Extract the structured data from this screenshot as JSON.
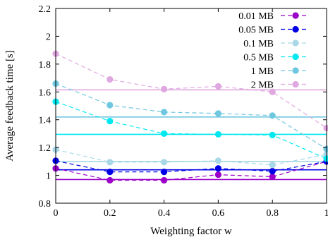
{
  "chart_data": {
    "type": "line",
    "xlabel": "Weighting factor w",
    "ylabel": "Average feedback time [s]",
    "xlim": [
      0,
      1
    ],
    "ylim": [
      0.8,
      2.2
    ],
    "x_ticks": [
      {
        "value": 0,
        "label": "0"
      },
      {
        "value": 0.2,
        "label": "0.2"
      },
      {
        "value": 0.4,
        "label": "0.4"
      },
      {
        "value": 0.6,
        "label": "0.6"
      },
      {
        "value": 0.8,
        "label": "0.8"
      },
      {
        "value": 1,
        "label": "1"
      }
    ],
    "y_ticks": [
      {
        "value": 0.8,
        "label": "0.8"
      },
      {
        "value": 1.0,
        "label": "1"
      },
      {
        "value": 1.2,
        "label": "1.2"
      },
      {
        "value": 1.4,
        "label": "1.4"
      },
      {
        "value": 1.6,
        "label": "1.6"
      },
      {
        "value": 1.8,
        "label": "1.8"
      },
      {
        "value": 2.0,
        "label": "2"
      },
      {
        "value": 2.2,
        "label": "2.2"
      }
    ],
    "grid": false,
    "legend_position": "top-right",
    "x": [
      0,
      0.2,
      0.4,
      0.6,
      0.8,
      1
    ],
    "series": [
      {
        "name": "0.01 MB",
        "color": "#9b00c8",
        "values": [
          1.05,
          0.965,
          0.965,
          1.005,
          0.99,
          1.1
        ],
        "baseline": 0.97
      },
      {
        "name": "0.05 MB",
        "color": "#0000e6",
        "values": [
          1.105,
          1.025,
          1.025,
          1.05,
          1.03,
          1.1
        ],
        "baseline": 1.04
      },
      {
        "name": "0.1 MB",
        "color": "#a8d8e8",
        "values": [
          1.185,
          1.095,
          1.095,
          1.105,
          1.075,
          1.15
        ],
        "baseline": 1.1
      },
      {
        "name": "0.5 MB",
        "color": "#00e8f0",
        "values": [
          1.53,
          1.39,
          1.3,
          1.295,
          1.29,
          1.12
        ],
        "baseline": 1.295
      },
      {
        "name": "1 MB",
        "color": "#70c8e0",
        "values": [
          1.66,
          1.505,
          1.455,
          1.445,
          1.43,
          1.19
        ],
        "baseline": 1.42
      },
      {
        "name": "2 MB",
        "color": "#e0a8e0",
        "values": [
          1.875,
          1.69,
          1.62,
          1.64,
          1.6,
          1.34
        ],
        "baseline": 1.615
      }
    ]
  }
}
